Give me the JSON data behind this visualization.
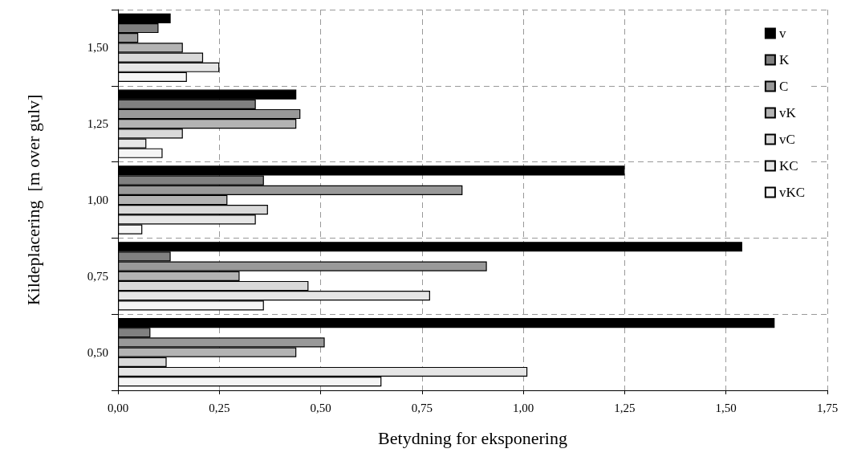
{
  "chart_data": {
    "type": "bar",
    "orientation": "horizontal",
    "xlabel": "Betydning for eksponering",
    "ylabel": "Kildeplacering  [m over gulv]",
    "categories": [
      "1,50",
      "1,25",
      "1,00",
      "0,75",
      "0,50"
    ],
    "series": [
      {
        "name": "v",
        "color": "#000000",
        "values": [
          0.13,
          0.44,
          1.25,
          1.54,
          1.62
        ]
      },
      {
        "name": "K",
        "color": "#808080",
        "values": [
          0.1,
          0.34,
          0.36,
          0.13,
          0.08
        ]
      },
      {
        "name": "C",
        "color": "#999999",
        "values": [
          0.05,
          0.45,
          0.85,
          0.91,
          0.51
        ]
      },
      {
        "name": "vK",
        "color": "#b3b3b3",
        "values": [
          0.16,
          0.44,
          0.27,
          0.3,
          0.44
        ]
      },
      {
        "name": "vC",
        "color": "#d9d9d9",
        "values": [
          0.21,
          0.16,
          0.37,
          0.47,
          0.12
        ]
      },
      {
        "name": "KC",
        "color": "#e6e6e6",
        "values": [
          0.25,
          0.07,
          0.34,
          0.77,
          1.01
        ]
      },
      {
        "name": "vKC",
        "color": "#f5f5f5",
        "values": [
          0.17,
          0.11,
          0.06,
          0.36,
          0.65
        ]
      }
    ],
    "xlim": [
      0,
      1.75
    ],
    "xticks": [
      {
        "value": 0,
        "label": "0,00"
      },
      {
        "value": 0.25,
        "label": "0,25"
      },
      {
        "value": 0.5,
        "label": "0,50"
      },
      {
        "value": 0.75,
        "label": "0,75"
      },
      {
        "value": 1,
        "label": "1,00"
      },
      {
        "value": 1.25,
        "label": "1,25"
      },
      {
        "value": 1.5,
        "label": "1,50"
      },
      {
        "value": 1.75,
        "label": "1,75"
      }
    ],
    "grid": true,
    "legend": "top right"
  }
}
